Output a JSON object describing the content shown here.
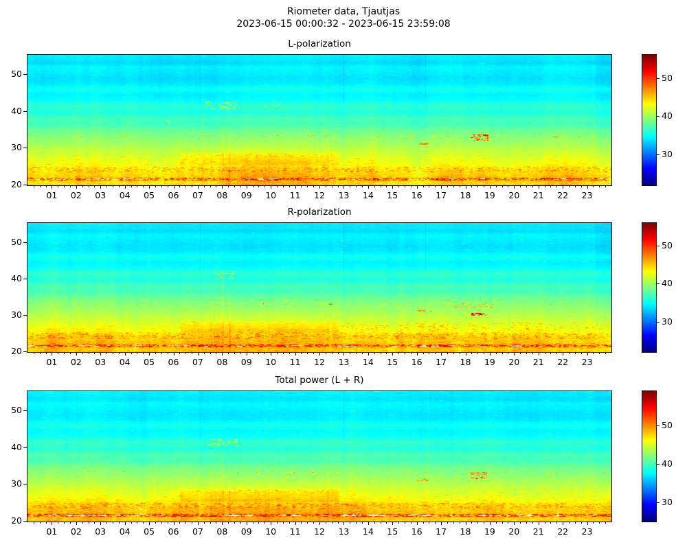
{
  "figure": {
    "title": "Riometer data, Tjautjas",
    "subtitle": "2023-06-15 00:00:32 - 2023-06-15 23:59:08",
    "background": "#ffffff",
    "text_color": "#000000"
  },
  "chart_data": {
    "type": "heatmap",
    "colormap": "jet",
    "legend_position": "right-colorbars",
    "grid": false,
    "x_axis": {
      "range_hours": [
        0,
        24
      ],
      "major_tick_labels": [
        "01",
        "02",
        "03",
        "04",
        "05",
        "06",
        "07",
        "08",
        "09",
        "10",
        "11",
        "12",
        "13",
        "14",
        "15",
        "16",
        "17",
        "18",
        "19",
        "20",
        "21",
        "22",
        "23"
      ],
      "minor_tick_step_hours": 0.25
    },
    "y_axis": {
      "range": [
        19.8,
        55.3
      ],
      "ticks": [
        "20",
        "30",
        "40",
        "50"
      ]
    },
    "base_profile": [
      [
        55.3,
        34.3
      ],
      [
        54.0,
        33.9
      ],
      [
        53.0,
        33.6
      ],
      [
        52.0,
        34.6
      ],
      [
        50.5,
        34.2
      ],
      [
        49.0,
        33.8
      ],
      [
        47.5,
        34.1
      ],
      [
        46.0,
        35.4
      ],
      [
        44.5,
        34.4
      ],
      [
        43.0,
        34.9
      ],
      [
        41.5,
        36.4
      ],
      [
        39.5,
        35.7
      ],
      [
        38.0,
        37.2
      ],
      [
        36.5,
        36.9
      ],
      [
        35.0,
        38.3
      ],
      [
        33.0,
        39.3
      ],
      [
        31.0,
        40.3
      ],
      [
        29.0,
        41.4
      ],
      [
        27.0,
        42.4
      ],
      [
        25.5,
        42.9
      ],
      [
        24.3,
        43.8
      ],
      [
        23.2,
        44.3
      ],
      [
        22.2,
        44.8
      ],
      [
        21.6,
        45.4
      ],
      [
        21.1,
        44.7
      ],
      [
        20.5,
        44.1
      ],
      [
        19.8,
        44.5
      ]
    ],
    "noise": {
      "row_block_sigma": [
        [
          36,
          0.28
        ],
        [
          28,
          0.45
        ],
        [
          23,
          0.75
        ],
        [
          -99,
          0.95
        ]
      ],
      "column_walk": 0.35,
      "hour_walk": 0.12,
      "dither": 0.15
    },
    "panels": [
      {
        "title": "L-polarization",
        "clim": [
          22,
          56
        ],
        "colorbar_ticks": [
          "30",
          "40",
          "50"
        ],
        "profile_offset": 0,
        "seed": 101,
        "features": [
          {
            "type": "bump",
            "t": 9.2,
            "sigma": 2.9,
            "amp": 1.3,
            "f_max": 33,
            "f_div": 11
          },
          {
            "type": "bump",
            "t": 20.0,
            "sigma": 3.2,
            "amp": 0.6,
            "f_max": 27,
            "f_div": 7
          },
          {
            "type": "block",
            "t0": 6.3,
            "t1": 12.8,
            "f0": 25.3,
            "f1": 28.6,
            "amp": 1.2
          },
          {
            "type": "vline",
            "t": 7.08,
            "amp": -0.9
          },
          {
            "type": "vline",
            "t": 13.0,
            "amp": -1.1
          },
          {
            "type": "vline",
            "t": 16.35,
            "amp": -0.8
          },
          {
            "type": "colshift",
            "t0": 23.35,
            "t1": 24,
            "amp": -0.5
          },
          {
            "type": "spike",
            "t": 7.55,
            "f1": 34,
            "amp": 1.3
          },
          {
            "type": "spike",
            "t": 8.02,
            "f1": 36,
            "amp": 1.8
          },
          {
            "type": "spike",
            "t": 8.3,
            "f1": 35,
            "amp": 1.4
          },
          {
            "type": "spike",
            "t": 9.9,
            "f1": 34,
            "amp": 1.6
          },
          {
            "type": "spike",
            "t": 11.9,
            "f1": 33,
            "amp": 1.2
          },
          {
            "type": "spike",
            "t": 12.35,
            "f1": 33,
            "amp": 1.5
          },
          {
            "type": "dash",
            "t0": 0,
            "t1": 24,
            "f0": 32.9,
            "f1": 33.45,
            "prob": 0.05,
            "amp": [
              2.5,
              7
            ]
          },
          {
            "type": "dash",
            "t0": 7,
            "t1": 12.8,
            "f0": 32.9,
            "f1": 33.45,
            "prob": 0.13,
            "amp": [
              2.5,
              7
            ]
          },
          {
            "type": "dash",
            "t0": 0,
            "t1": 24,
            "f0": 23.3,
            "f1": 24.9,
            "prob": 0.2,
            "amp": [
              1.5,
              4.5
            ]
          },
          {
            "type": "dash",
            "t0": 0,
            "t1": 24,
            "f0": 21.15,
            "f1": 21.85,
            "prob": 0.42,
            "amp": [
              3,
              8
            ]
          },
          {
            "type": "dash",
            "t0": 6.5,
            "t1": 12.8,
            "f0": 27.4,
            "f1": 28.4,
            "prob": 0.12,
            "amp": [
              1,
              3
            ]
          },
          {
            "type": "dash",
            "t0": 7.3,
            "t1": 8.6,
            "f0": 40.3,
            "f1": 42.6,
            "prob": 0.3,
            "amp": [
              2.5,
              6.5
            ]
          },
          {
            "type": "dash",
            "t0": 9.7,
            "t1": 10.4,
            "f0": 41.0,
            "f1": 42.3,
            "prob": 0.22,
            "amp": [
              2,
              5
            ]
          },
          {
            "type": "dash",
            "t0": 5.55,
            "t1": 5.85,
            "f0": 37.0,
            "f1": 37.6,
            "prob": 0.5,
            "amp": [
              3,
              5
            ]
          },
          {
            "type": "dash",
            "t0": 18.2,
            "t1": 18.95,
            "f0": 31.9,
            "f1": 33.6,
            "prob": 0.42,
            "amp": [
              6,
              13
            ]
          },
          {
            "type": "dash",
            "t0": 16.0,
            "t1": 16.5,
            "f0": 30.8,
            "f1": 31.35,
            "prob": 0.55,
            "amp": [
              5,
              9
            ]
          },
          {
            "type": "dash",
            "t0": 21.6,
            "t1": 22.0,
            "f0": 32.6,
            "f1": 33.2,
            "prob": 0.4,
            "amp": [
              4,
              7
            ]
          },
          {
            "type": "white",
            "f": 21.55,
            "prob": 0.05,
            "len": [
              3,
              12
            ]
          }
        ]
      },
      {
        "title": "R-polarization",
        "clim": [
          22,
          56
        ],
        "colorbar_ticks": [
          "30",
          "40",
          "50"
        ],
        "profile_offset": 0,
        "seed": 202,
        "features": [
          {
            "type": "bump",
            "t": 9.2,
            "sigma": 2.9,
            "amp": 1.3,
            "f_max": 33,
            "f_div": 11
          },
          {
            "type": "bump",
            "t": 20.0,
            "sigma": 3.2,
            "amp": 0.7,
            "f_max": 27,
            "f_div": 7
          },
          {
            "type": "block",
            "t0": 6.3,
            "t1": 12.8,
            "f0": 25.0,
            "f1": 28.2,
            "amp": 1.2
          },
          {
            "type": "block",
            "t0": 0,
            "t1": 24,
            "f0": 19.8,
            "f1": 26.3,
            "amp": 0.4
          },
          {
            "type": "vline",
            "t": 7.08,
            "amp": -0.8
          },
          {
            "type": "vline",
            "t": 13.0,
            "amp": -1.1
          },
          {
            "type": "vline",
            "t": 16.35,
            "amp": -0.9
          },
          {
            "type": "colshift",
            "t0": 23.35,
            "t1": 24,
            "amp": -0.5
          },
          {
            "type": "spike",
            "t": 7.55,
            "f1": 34,
            "amp": 1.2
          },
          {
            "type": "spike",
            "t": 8.02,
            "f1": 42,
            "amp": 1.7
          },
          {
            "type": "spike",
            "t": 8.3,
            "f1": 35,
            "amp": 1.3
          },
          {
            "type": "spike",
            "t": 9.9,
            "f1": 34,
            "amp": 1.5
          },
          {
            "type": "spike",
            "t": 12.35,
            "f1": 33,
            "amp": 1.4
          },
          {
            "type": "dash",
            "t0": 0,
            "t1": 24,
            "f0": 32.9,
            "f1": 33.45,
            "prob": 0.05,
            "amp": [
              2.5,
              7
            ]
          },
          {
            "type": "dash",
            "t0": 7,
            "t1": 12.8,
            "f0": 32.9,
            "f1": 33.45,
            "prob": 0.12,
            "amp": [
              2.5,
              6
            ]
          },
          {
            "type": "dash",
            "t0": 0,
            "t1": 24,
            "f0": 23.3,
            "f1": 25.1,
            "prob": 0.22,
            "amp": [
              1.5,
              4.5
            ]
          },
          {
            "type": "dash",
            "t0": 0,
            "t1": 24,
            "f0": 21.15,
            "f1": 21.85,
            "prob": 0.45,
            "amp": [
              3,
              8
            ]
          },
          {
            "type": "dash",
            "t0": 12.9,
            "t1": 24,
            "f0": 25.8,
            "f1": 28.0,
            "prob": 0.13,
            "amp": [
              1.5,
              4
            ]
          },
          {
            "type": "dash",
            "t0": 7.7,
            "t1": 8.5,
            "f0": 39.8,
            "f1": 42.2,
            "prob": 0.25,
            "amp": [
              2.5,
              6
            ]
          },
          {
            "type": "dash",
            "t0": 18.25,
            "t1": 18.9,
            "f0": 29.9,
            "f1": 30.6,
            "prob": 0.55,
            "amp": [
              7,
              13
            ]
          },
          {
            "type": "dash",
            "t0": 17.5,
            "t1": 19.2,
            "f0": 31.8,
            "f1": 33.4,
            "prob": 0.25,
            "amp": [
              3,
              7
            ]
          },
          {
            "type": "dash",
            "t0": 16.0,
            "t1": 16.6,
            "f0": 30.9,
            "f1": 31.4,
            "prob": 0.5,
            "amp": [
              5,
              9
            ]
          },
          {
            "type": "white",
            "f": 21.55,
            "prob": 0.07,
            "len": [
              3,
              12
            ]
          }
        ]
      },
      {
        "title": "Total power (L + R)",
        "clim": [
          25,
          59
        ],
        "colorbar_ticks": [
          "30",
          "40",
          "50"
        ],
        "profile_offset": 3.1,
        "seed": 303,
        "features": [
          {
            "type": "bump",
            "t": 9.2,
            "sigma": 2.9,
            "amp": 1.3,
            "f_max": 33,
            "f_div": 11
          },
          {
            "type": "bump",
            "t": 20.0,
            "sigma": 3.2,
            "amp": 0.6,
            "f_max": 27,
            "f_div": 7
          },
          {
            "type": "block",
            "t0": 6.3,
            "t1": 12.8,
            "f0": 25.3,
            "f1": 28.6,
            "amp": 1.2
          },
          {
            "type": "block",
            "t0": 0,
            "t1": 24,
            "f0": 19.8,
            "f1": 26.0,
            "amp": 0.3
          },
          {
            "type": "vline",
            "t": 7.08,
            "amp": -0.9
          },
          {
            "type": "vline",
            "t": 13.0,
            "amp": -1.1
          },
          {
            "type": "vline",
            "t": 16.35,
            "amp": -0.8
          },
          {
            "type": "colshift",
            "t0": 23.35,
            "t1": 24,
            "amp": -0.5
          },
          {
            "type": "spike",
            "t": 7.55,
            "f1": 34,
            "amp": 1.3
          },
          {
            "type": "spike",
            "t": 8.02,
            "f1": 36,
            "amp": 1.7
          },
          {
            "type": "spike",
            "t": 8.3,
            "f1": 35,
            "amp": 1.4
          },
          {
            "type": "spike",
            "t": 9.9,
            "f1": 34,
            "amp": 1.5
          },
          {
            "type": "spike",
            "t": 12.35,
            "f1": 33,
            "amp": 1.4
          },
          {
            "type": "dash",
            "t0": 0,
            "t1": 24,
            "f0": 32.9,
            "f1": 33.45,
            "prob": 0.05,
            "amp": [
              2.5,
              7
            ]
          },
          {
            "type": "dash",
            "t0": 7,
            "t1": 12.8,
            "f0": 32.9,
            "f1": 33.45,
            "prob": 0.12,
            "amp": [
              2.5,
              6
            ]
          },
          {
            "type": "dash",
            "t0": 0,
            "t1": 24,
            "f0": 23.3,
            "f1": 24.9,
            "prob": 0.22,
            "amp": [
              1.5,
              4
            ]
          },
          {
            "type": "dash",
            "t0": 0,
            "t1": 24,
            "f0": 21.15,
            "f1": 21.85,
            "prob": 0.45,
            "amp": [
              3,
              8
            ]
          },
          {
            "type": "dash",
            "t0": 6.5,
            "t1": 12.8,
            "f0": 27.4,
            "f1": 28.4,
            "prob": 0.12,
            "amp": [
              1,
              3
            ]
          },
          {
            "type": "dash",
            "t0": 7.4,
            "t1": 8.6,
            "f0": 40.5,
            "f1": 42.5,
            "prob": 0.25,
            "amp": [
              2.5,
              6
            ]
          },
          {
            "type": "dash",
            "t0": 18.2,
            "t1": 18.9,
            "f0": 31.4,
            "f1": 33.3,
            "prob": 0.4,
            "amp": [
              5,
              10
            ]
          },
          {
            "type": "dash",
            "t0": 16.0,
            "t1": 16.5,
            "f0": 30.8,
            "f1": 31.3,
            "prob": 0.5,
            "amp": [
              4,
              8
            ]
          },
          {
            "type": "white",
            "f": 21.55,
            "prob": 0.17,
            "len": [
              4,
              16
            ]
          }
        ]
      }
    ]
  }
}
